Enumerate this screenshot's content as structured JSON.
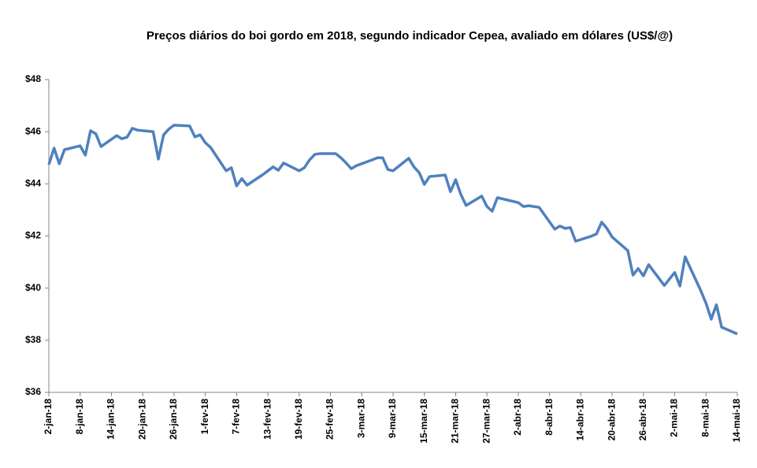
{
  "chart_data": {
    "type": "line",
    "title": "Preços diários do boi gordo em 2018, segundo indicador Cepea, avaliado em dólares (US$/@)",
    "x": [
      "2018-01-02",
      "2018-01-03",
      "2018-01-04",
      "2018-01-05",
      "2018-01-08",
      "2018-01-09",
      "2018-01-10",
      "2018-01-11",
      "2018-01-12",
      "2018-01-15",
      "2018-01-16",
      "2018-01-17",
      "2018-01-18",
      "2018-01-19",
      "2018-01-22",
      "2018-01-23",
      "2018-01-24",
      "2018-01-25",
      "2018-01-26",
      "2018-01-29",
      "2018-01-30",
      "2018-01-31",
      "2018-02-01",
      "2018-02-02",
      "2018-02-05",
      "2018-02-06",
      "2018-02-07",
      "2018-02-08",
      "2018-02-09",
      "2018-02-12",
      "2018-02-13",
      "2018-02-14",
      "2018-02-15",
      "2018-02-16",
      "2018-02-19",
      "2018-02-20",
      "2018-02-21",
      "2018-02-22",
      "2018-02-23",
      "2018-02-26",
      "2018-02-27",
      "2018-02-28",
      "2018-03-01",
      "2018-03-02",
      "2018-03-05",
      "2018-03-06",
      "2018-03-07",
      "2018-03-08",
      "2018-03-09",
      "2018-03-12",
      "2018-03-13",
      "2018-03-14",
      "2018-03-15",
      "2018-03-16",
      "2018-03-19",
      "2018-03-20",
      "2018-03-21",
      "2018-03-22",
      "2018-03-23",
      "2018-03-26",
      "2018-03-27",
      "2018-03-28",
      "2018-03-29",
      "2018-04-02",
      "2018-04-03",
      "2018-04-04",
      "2018-04-05",
      "2018-04-06",
      "2018-04-09",
      "2018-04-10",
      "2018-04-11",
      "2018-04-12",
      "2018-04-13",
      "2018-04-16",
      "2018-04-17",
      "2018-04-18",
      "2018-04-19",
      "2018-04-20",
      "2018-04-23",
      "2018-04-24",
      "2018-04-25",
      "2018-04-26",
      "2018-04-27",
      "2018-04-30",
      "2018-05-02",
      "2018-05-03",
      "2018-05-04",
      "2018-05-07",
      "2018-05-08",
      "2018-05-09",
      "2018-05-10",
      "2018-05-11",
      "2018-05-14"
    ],
    "series": [
      {
        "name": "US$/@",
        "color": "#4f81bd",
        "values": [
          44.74,
          45.37,
          44.77,
          45.31,
          45.46,
          45.1,
          46.04,
          45.92,
          45.43,
          45.85,
          45.73,
          45.79,
          46.13,
          46.06,
          46.0,
          44.95,
          45.88,
          46.1,
          46.25,
          46.22,
          45.8,
          45.88,
          45.58,
          45.4,
          44.5,
          44.62,
          43.92,
          44.2,
          43.95,
          44.35,
          44.5,
          44.65,
          44.52,
          44.8,
          44.5,
          44.62,
          44.92,
          45.13,
          45.16,
          45.16,
          45.0,
          44.8,
          44.58,
          44.7,
          44.92,
          45.0,
          45.0,
          44.55,
          44.5,
          44.98,
          44.65,
          44.43,
          43.98,
          44.28,
          44.34,
          43.7,
          44.16,
          43.59,
          43.17,
          43.53,
          43.13,
          42.95,
          43.47,
          43.28,
          43.13,
          43.16,
          43.13,
          43.1,
          42.26,
          42.38,
          42.29,
          42.32,
          41.8,
          41.99,
          42.08,
          42.53,
          42.29,
          41.96,
          41.44,
          40.5,
          40.75,
          40.47,
          40.9,
          40.1,
          40.6,
          40.08,
          41.2,
          39.9,
          39.42,
          38.81,
          39.36,
          38.5,
          38.24
        ]
      }
    ],
    "xlim": [
      "2018-01-02",
      "2018-05-14"
    ],
    "xticks": [
      {
        "value": "2018-01-02",
        "label": "2-jan-18"
      },
      {
        "value": "2018-01-08",
        "label": "8-jan-18"
      },
      {
        "value": "2018-01-14",
        "label": "14-jan-18"
      },
      {
        "value": "2018-01-20",
        "label": "20-jan-18"
      },
      {
        "value": "2018-01-26",
        "label": "26-jan-18"
      },
      {
        "value": "2018-02-01",
        "label": "1-fev-18"
      },
      {
        "value": "2018-02-07",
        "label": "7-fev-18"
      },
      {
        "value": "2018-02-13",
        "label": "13-fev-18"
      },
      {
        "value": "2018-02-19",
        "label": "19-fev-18"
      },
      {
        "value": "2018-02-25",
        "label": "25-fev-18"
      },
      {
        "value": "2018-03-03",
        "label": "3-mar-18"
      },
      {
        "value": "2018-03-09",
        "label": "9-mar-18"
      },
      {
        "value": "2018-03-15",
        "label": "15-mar-18"
      },
      {
        "value": "2018-03-21",
        "label": "21-mar-18"
      },
      {
        "value": "2018-03-27",
        "label": "27-mar-18"
      },
      {
        "value": "2018-04-02",
        "label": "2-abr-18"
      },
      {
        "value": "2018-04-08",
        "label": "8-abr-18"
      },
      {
        "value": "2018-04-14",
        "label": "14-abr-18"
      },
      {
        "value": "2018-04-20",
        "label": "20-abr-18"
      },
      {
        "value": "2018-04-26",
        "label": "26-abr-18"
      },
      {
        "value": "2018-05-02",
        "label": "2-mai-18"
      },
      {
        "value": "2018-05-08",
        "label": "8-mai-18"
      },
      {
        "value": "2018-05-14",
        "label": "14-mai-18"
      }
    ],
    "ylim": [
      36,
      48
    ],
    "yticks": [
      {
        "value": 36,
        "label": "$36"
      },
      {
        "value": 38,
        "label": "$38"
      },
      {
        "value": 40,
        "label": "$40"
      },
      {
        "value": 42,
        "label": "$42"
      },
      {
        "value": 44,
        "label": "$44"
      },
      {
        "value": 46,
        "label": "$46"
      },
      {
        "value": 48,
        "label": "$48"
      }
    ],
    "grid": false
  }
}
